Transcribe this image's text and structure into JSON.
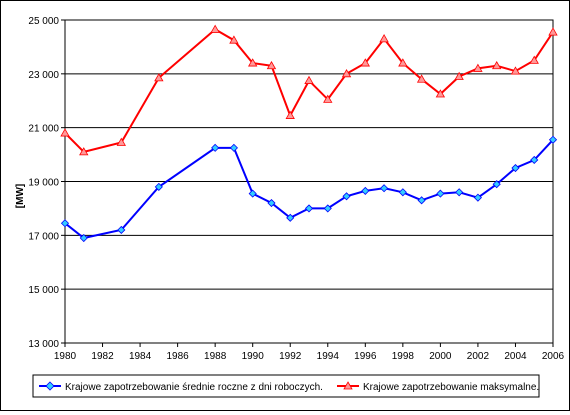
{
  "chart_data": {
    "type": "line",
    "title": "",
    "xlabel": "",
    "ylabel": "[MW]",
    "x": [
      1980,
      1981,
      1983,
      1985,
      1988,
      1989,
      1990,
      1991,
      1992,
      1993,
      1994,
      1995,
      1996,
      1997,
      1998,
      1999,
      2000,
      2001,
      2002,
      2003,
      2004,
      2005,
      2006
    ],
    "xlim": [
      1980,
      2006
    ],
    "xticks": [
      "1980",
      "1982",
      "1984",
      "1986",
      "1988",
      "1990",
      "1992",
      "1994",
      "1996",
      "1998",
      "2000",
      "2002",
      "2004",
      "2006"
    ],
    "ylim": [
      13000,
      25000
    ],
    "yticks": [
      "13 000",
      "15 000",
      "17 000",
      "19 000",
      "21 000",
      "23 000",
      "25 000"
    ],
    "grid": "horizontal",
    "legend_position": "bottom",
    "series": [
      {
        "name": "Krajowe zapotrzebowanie średnie roczne z dni roboczych.",
        "color": "#0000ff",
        "marker": "diamond",
        "marker_color": "#33ccff",
        "values": [
          17450,
          16900,
          17200,
          18800,
          20250,
          20250,
          18550,
          18200,
          17650,
          18000,
          18000,
          18450,
          18650,
          18750,
          18600,
          18300,
          18550,
          18600,
          18400,
          18900,
          19500,
          19800,
          20550
        ]
      },
      {
        "name": "Krajowe zapotrzebowanie maksymalne.",
        "color": "#ff0000",
        "marker": "triangle",
        "marker_color": "#ff9999",
        "values": [
          20800,
          20100,
          20450,
          22850,
          24650,
          24250,
          23400,
          23300,
          21450,
          22750,
          22050,
          23000,
          23400,
          24300,
          23400,
          22800,
          22250,
          22900,
          23200,
          23300,
          23100,
          23500,
          24550
        ]
      }
    ]
  }
}
